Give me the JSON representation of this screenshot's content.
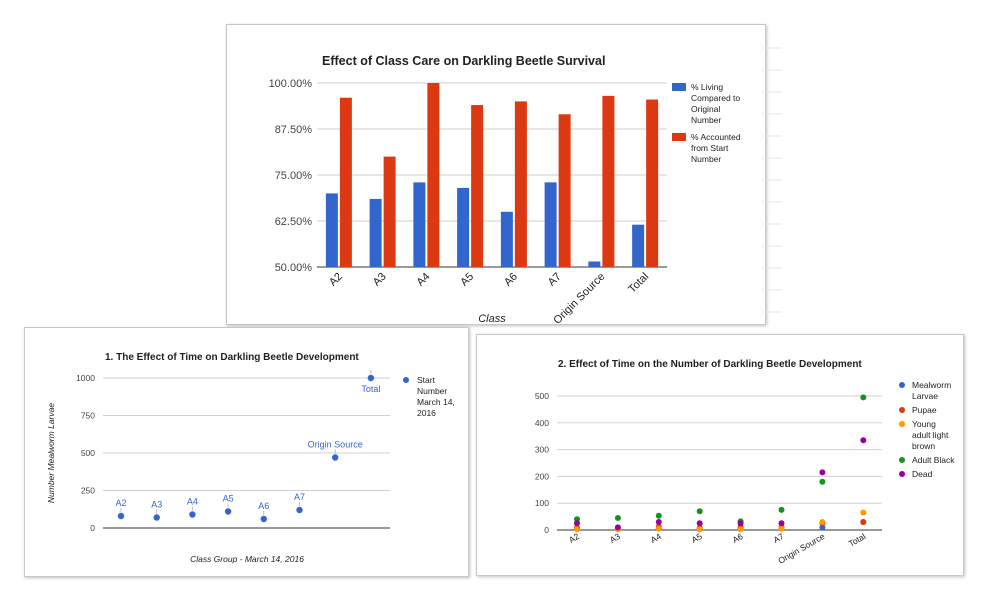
{
  "charts": {
    "survival": {
      "chart_data": {
        "type": "bar",
        "title": "Effect of Class Care on Darkling Beetle Survival",
        "xlabel": "Class",
        "ylabel": "",
        "categories": [
          "A2",
          "A3",
          "A4",
          "A5",
          "A6",
          "A7",
          "Origin Source",
          "Total"
        ],
        "ylim": [
          50,
          100
        ],
        "yticks": [
          "50.00%",
          "62.50%",
          "75.00%",
          "87.50%",
          "100.00%"
        ],
        "ytick_values": [
          50,
          62.5,
          75,
          87.5,
          100
        ],
        "series": [
          {
            "name": "% Living Compared to Original Number",
            "legend_lines": [
              "% Living",
              "Compared to",
              "Original",
              "Number"
            ],
            "color": "#3366cc",
            "values": [
              70,
              68.5,
              73,
              71.5,
              65,
              73,
              51.5,
              61.5
            ]
          },
          {
            "name": "% Accounted from Start Number",
            "legend_lines": [
              "% Accounted",
              "from Start",
              "Number"
            ],
            "color": "#dc3912",
            "values": [
              96,
              80,
              100,
              94,
              95,
              91.5,
              96.5,
              95.5
            ]
          }
        ],
        "legend": "right"
      }
    },
    "development": {
      "chart_data": {
        "type": "scatter",
        "title": "1. The Effect of Time on Darkling Beetle Development",
        "xlabel": "Class Group - March 14, 2016",
        "ylabel": "Number Mealworm Larvae",
        "ylim": [
          0,
          1000
        ],
        "yticks": [
          "0",
          "250",
          "500",
          "750",
          "1000"
        ],
        "ytick_values": [
          0,
          250,
          500,
          750,
          1000
        ],
        "series": [
          {
            "name": "Start Number March 14, 2016",
            "legend_lines": [
              "Start",
              "Number",
              "March 14,",
              "2016"
            ],
            "color": "#3366cc",
            "points": [
              {
                "x": 1,
                "y": 80,
                "label": "A2"
              },
              {
                "x": 2,
                "y": 70,
                "label": "A3"
              },
              {
                "x": 3,
                "y": 90,
                "label": "A4"
              },
              {
                "x": 4,
                "y": 110,
                "label": "A5"
              },
              {
                "x": 5,
                "y": 60,
                "label": "A6"
              },
              {
                "x": 6,
                "y": 120,
                "label": "A7"
              },
              {
                "x": 7,
                "y": 470,
                "label": "Origin Source"
              },
              {
                "x": 8,
                "y": 1000,
                "label": "Total"
              }
            ]
          }
        ],
        "legend": "right"
      }
    },
    "stages": {
      "chart_data": {
        "type": "scatter",
        "title": "2. Effect of Time on the Number of Darkling Beetle Development",
        "xlabel": "",
        "ylabel": "",
        "categories": [
          "A2",
          "A3",
          "A4",
          "A5",
          "A6",
          "A7",
          "Origin Source",
          "Total"
        ],
        "ylim": [
          0,
          500
        ],
        "yticks": [
          "0",
          "100",
          "200",
          "300",
          "400",
          "500"
        ],
        "ytick_values": [
          0,
          100,
          200,
          300,
          400,
          500
        ],
        "series": [
          {
            "name": "Mealworm Larvae",
            "legend_lines": [
              "Mealworm",
              "Larvae"
            ],
            "color": "#3366cc",
            "values": [
              5,
              3,
              5,
              3,
              5,
              5,
              10,
              30
            ]
          },
          {
            "name": "Pupae",
            "legend_lines": [
              "Pupae"
            ],
            "color": "#dc3912",
            "values": [
              8,
              6,
              12,
              8,
              12,
              10,
              25,
              30
            ]
          },
          {
            "name": "Young adult light brown",
            "legend_lines": [
              "Young",
              "adult light",
              "brown"
            ],
            "color": "#ff9900",
            "values": [
              3,
              3,
              5,
              3,
              3,
              5,
              30,
              65
            ]
          },
          {
            "name": "Adult Black",
            "legend_lines": [
              "Adult Black"
            ],
            "color": "#109618",
            "values": [
              40,
              45,
              53,
              70,
              32,
              75,
              180,
              495
            ]
          },
          {
            "name": "Dead",
            "legend_lines": [
              "Dead"
            ],
            "color": "#990099",
            "values": [
              25,
              10,
              30,
              25,
              25,
              25,
              215,
              335
            ]
          }
        ],
        "legend": "right"
      }
    }
  }
}
